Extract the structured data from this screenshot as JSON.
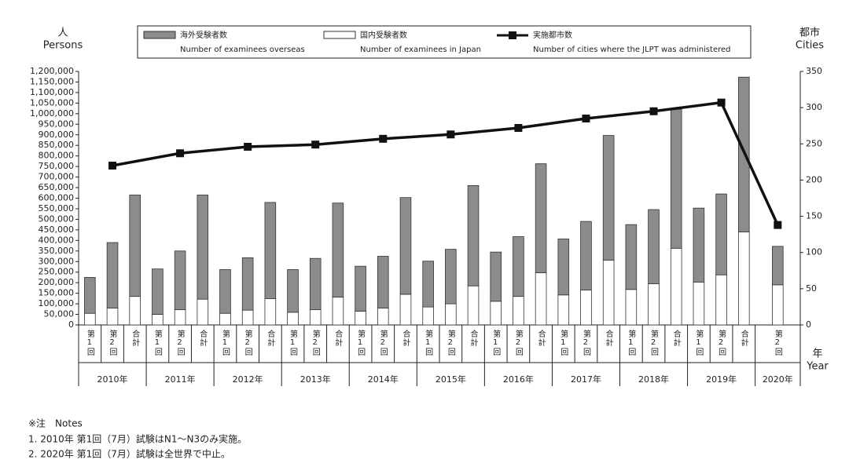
{
  "chart_data": {
    "type": "bar_line",
    "y_label": "人",
    "y_label_en": "Persons",
    "y2_label": "都市",
    "y2_label_en": "Cities",
    "x_label": "年",
    "x_label_en": "Year",
    "groups": [
      {
        "label": "2010年",
        "categories": [
          "第1回",
          "第2回",
          "合計"
        ]
      },
      {
        "label": "2011年",
        "categories": [
          "第1回",
          "第2回",
          "合計"
        ]
      },
      {
        "label": "2012年",
        "categories": [
          "第1回",
          "第2回",
          "合計"
        ]
      },
      {
        "label": "2013年",
        "categories": [
          "第1回",
          "第2回",
          "合計"
        ]
      },
      {
        "label": "2014年",
        "categories": [
          "第1回",
          "第2回",
          "合計"
        ]
      },
      {
        "label": "2015年",
        "categories": [
          "第1回",
          "第2回",
          "合計"
        ]
      },
      {
        "label": "2016年",
        "categories": [
          "第1回",
          "第2回",
          "合計"
        ]
      },
      {
        "label": "2017年",
        "categories": [
          "第1回",
          "第2回",
          "合計"
        ]
      },
      {
        "label": "2018年",
        "categories": [
          "第1回",
          "第2回",
          "合計"
        ]
      },
      {
        "label": "2019年",
        "categories": [
          "第1回",
          "第2回",
          "合計"
        ]
      },
      {
        "label": "2020年",
        "categories": [
          "第2回"
        ]
      }
    ],
    "series": [
      {
        "name": "海外受験者数",
        "name_en": "Number of examinees overseas",
        "color": "#8c8c8c",
        "kind": "bar",
        "values": [
          170000,
          310000,
          480000,
          215000,
          278000,
          493000,
          207000,
          248000,
          455000,
          202000,
          243000,
          445000,
          213000,
          245000,
          458000,
          217000,
          258000,
          475000,
          233000,
          283000,
          516000,
          265000,
          325000,
          590000,
          307000,
          351000,
          658000,
          350000,
          383000,
          733000,
          182000
        ]
      },
      {
        "name": "国内受験者数",
        "name_en": "Number of examinees in Japan",
        "color": "#ffffff",
        "kind": "bar",
        "values": [
          55000,
          80000,
          135000,
          50000,
          72000,
          122000,
          55000,
          70000,
          125000,
          60000,
          72000,
          132000,
          65000,
          80000,
          145000,
          85000,
          100000,
          185000,
          112000,
          135000,
          247000,
          142000,
          165000,
          307000,
          168000,
          195000,
          363000,
          203000,
          237000,
          440000,
          190000
        ]
      },
      {
        "name": "実施都市数",
        "name_en": "Number of cities where the JLPT was administered",
        "color": "#111111",
        "kind": "line",
        "axis": "y2",
        "values": [
          220,
          237,
          246,
          249,
          257,
          263,
          272,
          285,
          295,
          307,
          138
        ]
      }
    ],
    "ylim": [
      0,
      1200000
    ],
    "yticks": [
      0,
      {
        "value": 50000,
        "label": "50,000"
      },
      {
        "value": 100000,
        "label": "100,000"
      },
      {
        "value": 150000,
        "label": "150,000"
      },
      {
        "value": 200000,
        "label": "200,000"
      },
      {
        "value": 250000,
        "label": "250,000"
      },
      {
        "value": 300000,
        "label": "300,000"
      },
      {
        "value": 350000,
        "label": "350,000"
      },
      {
        "value": 400000,
        "label": "400,000"
      },
      {
        "value": 450000,
        "label": "450,000"
      },
      {
        "value": 500000,
        "label": "500,000"
      },
      {
        "value": 550000,
        "label": "550,000"
      },
      {
        "value": 600000,
        "label": "600,000"
      },
      {
        "value": 650000,
        "label": "650,000"
      },
      {
        "value": 700000,
        "label": "700,000"
      },
      {
        "value": 750000,
        "label": "750,000"
      },
      {
        "value": 800000,
        "label": "800,000"
      },
      {
        "value": 850000,
        "label": "850,000"
      },
      {
        "value": 900000,
        "label": "900,000"
      },
      {
        "value": 950000,
        "label": "950,000"
      },
      {
        "value": 1000000,
        "label": "1,000,000"
      },
      {
        "value": 1050000,
        "label": "1,050,000"
      },
      {
        "value": 1100000,
        "label": "1,100,000"
      },
      {
        "value": 1150000,
        "label": "1,150,000"
      },
      {
        "value": 1200000,
        "label": "1,200,000"
      }
    ],
    "y2lim": [
      0,
      350
    ],
    "y2ticks": [
      0,
      50,
      100,
      150,
      200,
      250,
      300,
      350
    ],
    "grid": false
  },
  "notes": {
    "title": "※注　Notes",
    "items": [
      "1.  2010年 第1回（7月）試験はN1～N3のみ実施。",
      "2.  2020年 第1回（7月）試験は全世界で中止。"
    ]
  }
}
